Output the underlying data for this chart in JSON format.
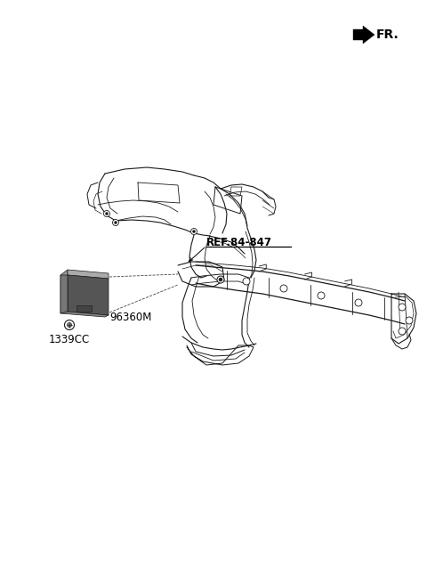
{
  "bg_color": "#ffffff",
  "fig_width": 4.8,
  "fig_height": 6.56,
  "dpi": 100,
  "fr_label": "FR.",
  "ref_label": "REF.84-847",
  "part_label_96360M": "96360M",
  "part_label_1339CC": "1339CC",
  "line_color": "#1a1a1a",
  "gray_dark": "#4a4a4a",
  "gray_mid": "#7a7a7a",
  "gray_light": "#aaaaaa"
}
